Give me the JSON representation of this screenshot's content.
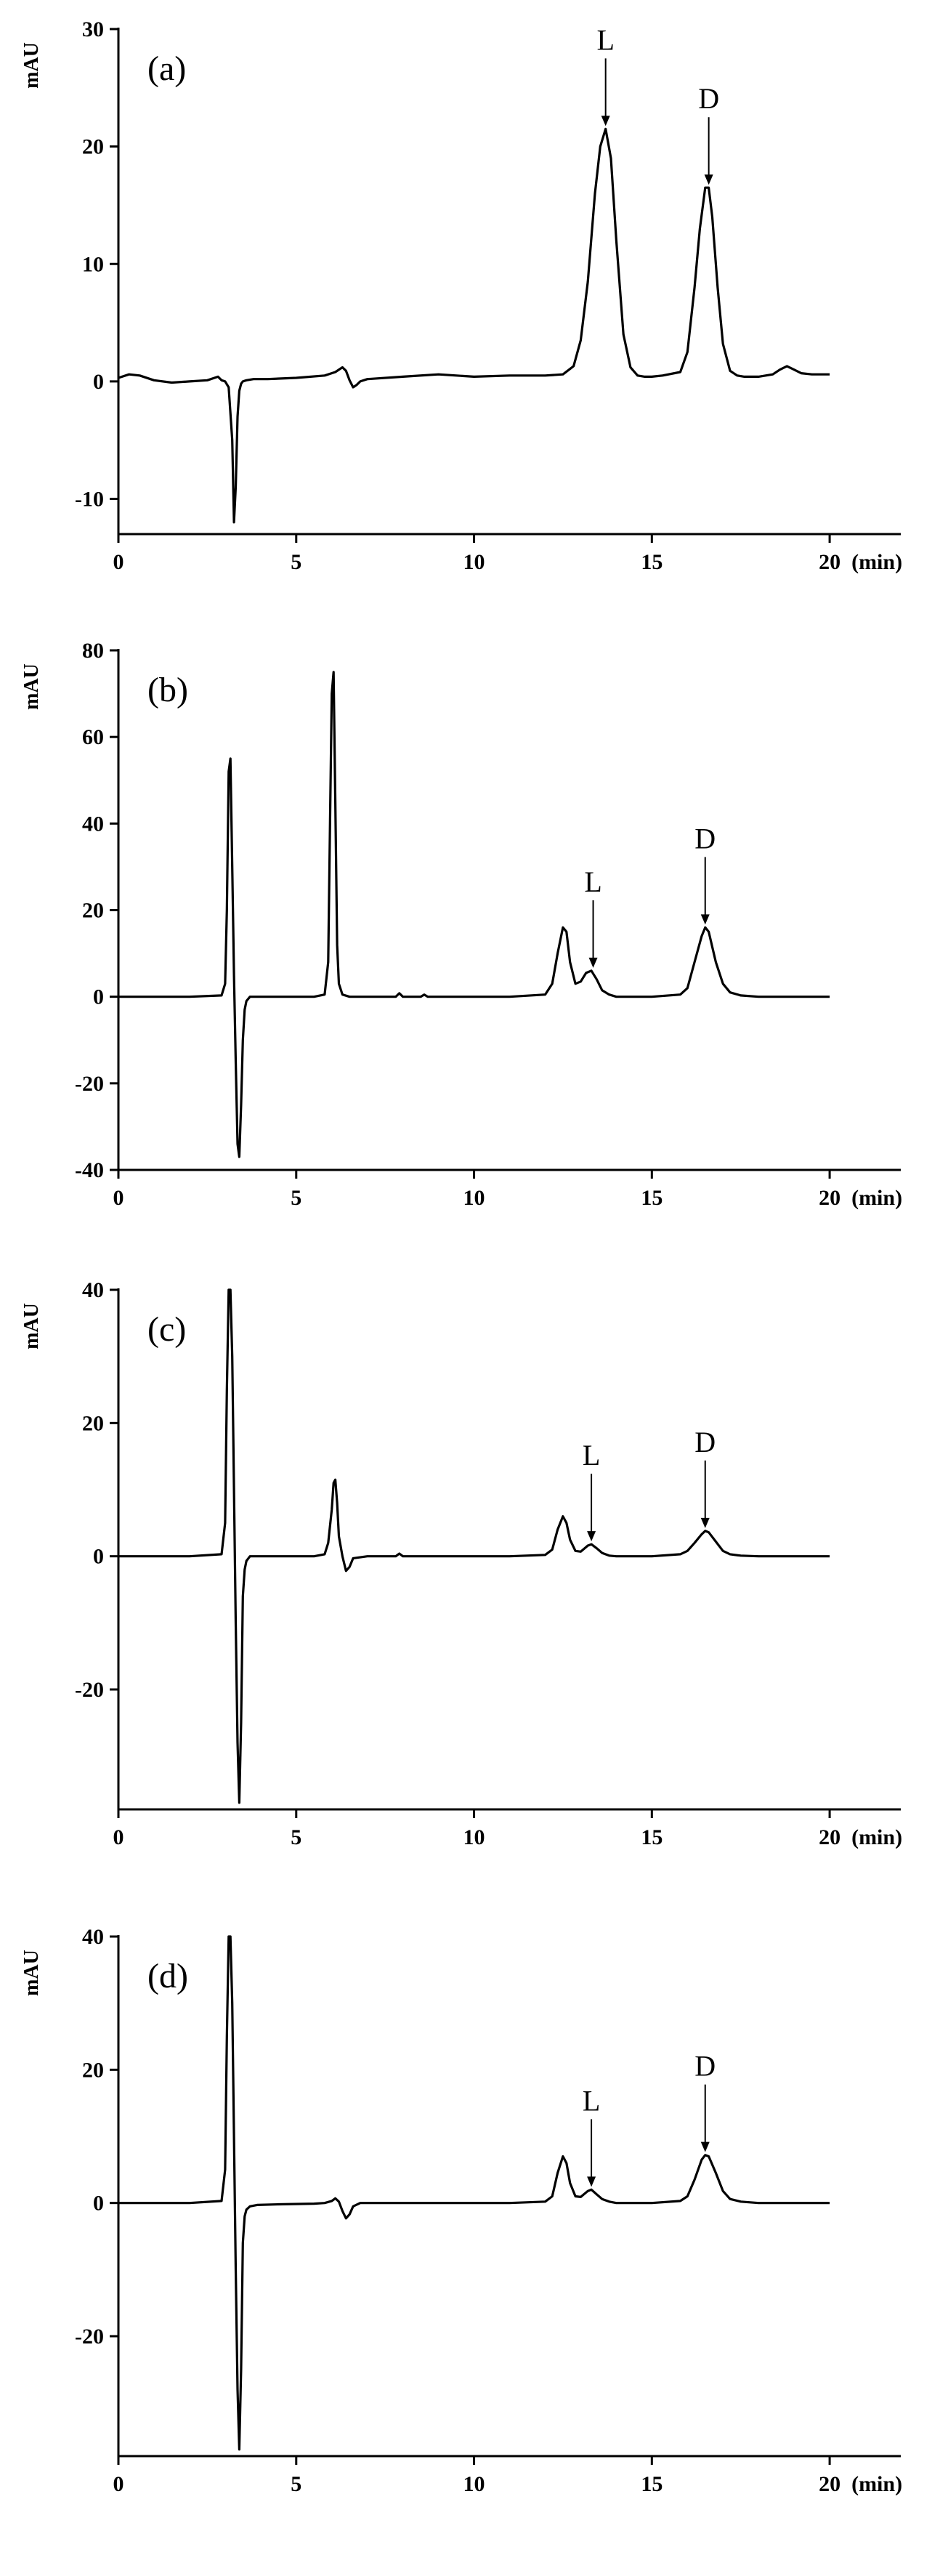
{
  "colors": {
    "trace": "#000000",
    "axis": "#000000",
    "background": "#ffffff"
  },
  "chart_data": [
    {
      "type": "line",
      "panel_label": "(a)",
      "ylabel": "mAU",
      "x_unit_label": "(min)",
      "xlim": [
        0,
        22
      ],
      "ylim": [
        -13,
        30
      ],
      "x_ticks": [
        0,
        5,
        10,
        15,
        20
      ],
      "y_ticks": [
        -10,
        0,
        10,
        20,
        30
      ],
      "grid": false,
      "series": [
        {
          "x": [
            0,
            0.3,
            0.6,
            1,
            1.5,
            2,
            2.5,
            2.8,
            2.9,
            3.0,
            3.1,
            3.2,
            3.25,
            3.3,
            3.35,
            3.4,
            3.45,
            3.5,
            3.6,
            3.8,
            4.2,
            5,
            5.8,
            6.1,
            6.3,
            6.4,
            6.5,
            6.6,
            6.7,
            6.8,
            7,
            8,
            9,
            10,
            11,
            12,
            12.5,
            12.8,
            13.0,
            13.2,
            13.4,
            13.55,
            13.7,
            13.85,
            14.0,
            14.2,
            14.4,
            14.6,
            14.8,
            15.0,
            15.3,
            15.8,
            16.0,
            16.2,
            16.35,
            16.5,
            16.6,
            16.7,
            16.85,
            17.0,
            17.2,
            17.4,
            17.6,
            18.0,
            18.4,
            18.6,
            18.8,
            19.0,
            19.2,
            19.5,
            20
          ],
          "y": [
            0.3,
            0.6,
            0.5,
            0.1,
            -0.1,
            0.0,
            0.1,
            0.4,
            0.1,
            0.0,
            -0.5,
            -5,
            -12,
            -9,
            -3,
            -0.8,
            -0.2,
            0.0,
            0.1,
            0.2,
            0.2,
            0.3,
            0.5,
            0.8,
            1.2,
            0.9,
            0.1,
            -0.5,
            -0.3,
            0.0,
            0.2,
            0.4,
            0.6,
            0.4,
            0.5,
            0.5,
            0.6,
            1.3,
            3.5,
            8.5,
            16,
            20,
            21.5,
            19,
            12,
            4,
            1.2,
            0.5,
            0.4,
            0.4,
            0.5,
            0.8,
            2.5,
            8,
            13,
            16.5,
            16.5,
            14,
            8,
            3.2,
            0.9,
            0.5,
            0.4,
            0.4,
            0.6,
            1.0,
            1.3,
            1.0,
            0.7,
            0.6,
            0.6
          ]
        }
      ],
      "annotations": [
        {
          "text": "L",
          "x": 13.7,
          "y": 21.5
        },
        {
          "text": "D",
          "x": 16.6,
          "y": 16.5
        }
      ]
    },
    {
      "type": "line",
      "panel_label": "(b)",
      "ylabel": "mAU",
      "x_unit_label": "(min)",
      "xlim": [
        0,
        22
      ],
      "ylim": [
        -40,
        80
      ],
      "x_ticks": [
        0,
        5,
        10,
        15,
        20
      ],
      "y_ticks": [
        -40,
        -20,
        0,
        20,
        40,
        60,
        80
      ],
      "grid": false,
      "series": [
        {
          "x": [
            0,
            2,
            2.9,
            3.0,
            3.05,
            3.1,
            3.15,
            3.2,
            3.25,
            3.3,
            3.35,
            3.4,
            3.45,
            3.5,
            3.55,
            3.6,
            3.7,
            3.9,
            4.5,
            5.5,
            5.8,
            5.9,
            5.95,
            6.0,
            6.05,
            6.1,
            6.15,
            6.2,
            6.3,
            6.5,
            7,
            7.8,
            7.9,
            8.0,
            8.5,
            8.6,
            8.7,
            9,
            10,
            11,
            12,
            12.2,
            12.35,
            12.5,
            12.6,
            12.7,
            12.85,
            13.0,
            13.15,
            13.3,
            13.45,
            13.6,
            13.8,
            14.0,
            14.5,
            15,
            15.8,
            16.0,
            16.2,
            16.4,
            16.5,
            16.6,
            16.8,
            17.0,
            17.2,
            17.5,
            18,
            19,
            20
          ],
          "y": [
            0,
            0,
            0.3,
            3,
            20,
            52,
            55,
            30,
            5,
            -15,
            -34,
            -37,
            -25,
            -10,
            -3,
            -1,
            0,
            0,
            0,
            0,
            0.5,
            8,
            40,
            70,
            75,
            45,
            12,
            3,
            0.5,
            0,
            0,
            0,
            0.8,
            0,
            0,
            0.5,
            0,
            0,
            0,
            0,
            0.5,
            3,
            10,
            16,
            15,
            8,
            3,
            3.5,
            5.5,
            6,
            4,
            1.5,
            0.5,
            0,
            0,
            0,
            0.5,
            2,
            8,
            14,
            16,
            15,
            8,
            3,
            1,
            0.3,
            0,
            0,
            0
          ]
        }
      ],
      "annotations": [
        {
          "text": "L",
          "x": 13.35,
          "y": 6
        },
        {
          "text": "D",
          "x": 16.5,
          "y": 16
        }
      ]
    },
    {
      "type": "line",
      "panel_label": "(c)",
      "ylabel": "mAU",
      "x_unit_label": "(min)",
      "xlim": [
        0,
        22
      ],
      "ylim": [
        -38,
        40
      ],
      "x_ticks": [
        0,
        5,
        10,
        15,
        20
      ],
      "y_ticks": [
        -20,
        0,
        20,
        40
      ],
      "grid": false,
      "series": [
        {
          "x": [
            0,
            2,
            2.9,
            3.0,
            3.05,
            3.1,
            3.15,
            3.2,
            3.25,
            3.3,
            3.35,
            3.4,
            3.45,
            3.5,
            3.55,
            3.6,
            3.7,
            3.9,
            4.5,
            5.5,
            5.8,
            5.9,
            6.0,
            6.05,
            6.1,
            6.15,
            6.2,
            6.3,
            6.4,
            6.5,
            6.6,
            7,
            7.8,
            7.9,
            8.0,
            9,
            10,
            11,
            12,
            12.2,
            12.35,
            12.5,
            12.6,
            12.7,
            12.85,
            13.0,
            13.2,
            13.3,
            13.45,
            13.6,
            13.8,
            14.0,
            15,
            15.8,
            16.0,
            16.2,
            16.4,
            16.5,
            16.6,
            16.8,
            17.0,
            17.2,
            17.5,
            18,
            20
          ],
          "y": [
            0,
            0,
            0.3,
            5,
            25,
            40,
            40,
            30,
            10,
            -10,
            -28,
            -37,
            -25,
            -6,
            -2,
            -0.7,
            0,
            0,
            0,
            0,
            0.3,
            2,
            7,
            11,
            11.5,
            8,
            3,
            0,
            -2.2,
            -1.6,
            -0.3,
            0,
            0,
            0.4,
            0,
            0,
            0,
            0,
            0.2,
            1,
            4,
            6,
            5,
            2.5,
            0.8,
            0.7,
            1.6,
            1.8,
            1.2,
            0.5,
            0.1,
            0,
            0,
            0.3,
            0.8,
            2,
            3.3,
            3.8,
            3.6,
            2.2,
            0.8,
            0.3,
            0.1,
            0,
            0
          ]
        }
      ],
      "annotations": [
        {
          "text": "L",
          "x": 13.3,
          "y": 1.8
        },
        {
          "text": "D",
          "x": 16.5,
          "y": 3.8
        }
      ]
    },
    {
      "type": "line",
      "panel_label": "(d)",
      "ylabel": "mAU",
      "x_unit_label": "(min)",
      "xlim": [
        0,
        22
      ],
      "ylim": [
        -38,
        40
      ],
      "x_ticks": [
        0,
        5,
        10,
        15,
        20
      ],
      "y_ticks": [
        -20,
        0,
        20,
        40
      ],
      "grid": false,
      "series": [
        {
          "x": [
            0,
            2,
            2.9,
            3.0,
            3.05,
            3.1,
            3.15,
            3.2,
            3.25,
            3.3,
            3.35,
            3.4,
            3.45,
            3.5,
            3.55,
            3.6,
            3.7,
            3.9,
            4.5,
            5.5,
            5.8,
            6.0,
            6.1,
            6.2,
            6.3,
            6.4,
            6.5,
            6.6,
            6.8,
            7.2,
            8,
            9,
            10,
            11,
            12,
            12.2,
            12.35,
            12.5,
            12.6,
            12.7,
            12.85,
            13.0,
            13.2,
            13.3,
            13.45,
            13.6,
            13.8,
            14.0,
            15,
            15.8,
            16.0,
            16.2,
            16.4,
            16.5,
            16.6,
            16.8,
            17.0,
            17.2,
            17.5,
            18,
            20
          ],
          "y": [
            0,
            0,
            0.3,
            5,
            25,
            40,
            40,
            30,
            10,
            -10,
            -28,
            -37,
            -25,
            -6,
            -2,
            -1,
            -0.5,
            -0.3,
            -0.2,
            -0.1,
            0,
            0.3,
            0.7,
            0.2,
            -1.2,
            -2.3,
            -1.7,
            -0.5,
            0,
            0,
            0,
            0,
            0,
            0,
            0.2,
            1,
            4.5,
            7,
            6,
            3,
            1,
            0.9,
            1.8,
            2.0,
            1.3,
            0.6,
            0.2,
            0,
            0,
            0.3,
            1,
            3.5,
            6.5,
            7.2,
            7,
            4.5,
            1.8,
            0.6,
            0.2,
            0,
            0
          ]
        }
      ],
      "annotations": [
        {
          "text": "L",
          "x": 13.3,
          "y": 2.0
        },
        {
          "text": "D",
          "x": 16.5,
          "y": 7.2
        }
      ]
    }
  ]
}
